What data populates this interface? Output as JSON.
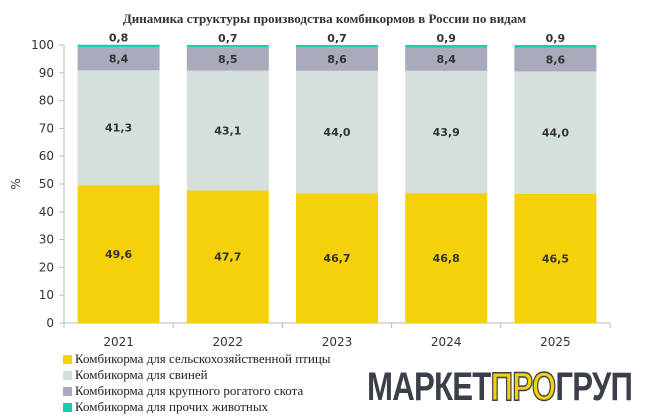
{
  "chart_data": {
    "type": "bar",
    "stacked": true,
    "title": "Динамика структуры производства комбикормов в России по видам",
    "ylabel": "%",
    "ylim": [
      0,
      100
    ],
    "yticks": [
      0,
      10,
      20,
      30,
      40,
      50,
      60,
      70,
      80,
      90,
      100
    ],
    "categories": [
      "2021",
      "2022",
      "2023",
      "2024",
      "2025"
    ],
    "series": [
      {
        "name": "Комбикорма для сельскохозяйственной птицы",
        "color": "#f5d10c",
        "values": [
          49.6,
          47.7,
          46.7,
          46.8,
          46.5
        ],
        "labels": [
          "49,6",
          "47,7",
          "46,7",
          "46,8",
          "46,5"
        ]
      },
      {
        "name": "Комбикорма для свиней",
        "color": "#d5dfdb",
        "values": [
          41.3,
          43.1,
          44.0,
          43.9,
          44.0
        ],
        "labels": [
          "41,3",
          "43,1",
          "44,0",
          "43,9",
          "44,0"
        ]
      },
      {
        "name": "Комбикорма для крупного рогатого скота",
        "color": "#a9abbd",
        "values": [
          8.4,
          8.5,
          8.6,
          8.4,
          8.6
        ],
        "labels": [
          "8,4",
          "8,5",
          "8,6",
          "8,4",
          "8,6"
        ]
      },
      {
        "name": "Комбикорма для прочих животных",
        "color": "#13cfb0",
        "values": [
          0.8,
          0.7,
          0.7,
          0.9,
          0.9
        ],
        "labels": [
          "0,8",
          "0,7",
          "0,7",
          "0,9",
          "0,9"
        ]
      }
    ],
    "legend": "bottom-left",
    "grid": false
  },
  "logo": {
    "part1": "МАРКЕТ",
    "part2": "ПРО",
    "part3": "ГРУП"
  }
}
